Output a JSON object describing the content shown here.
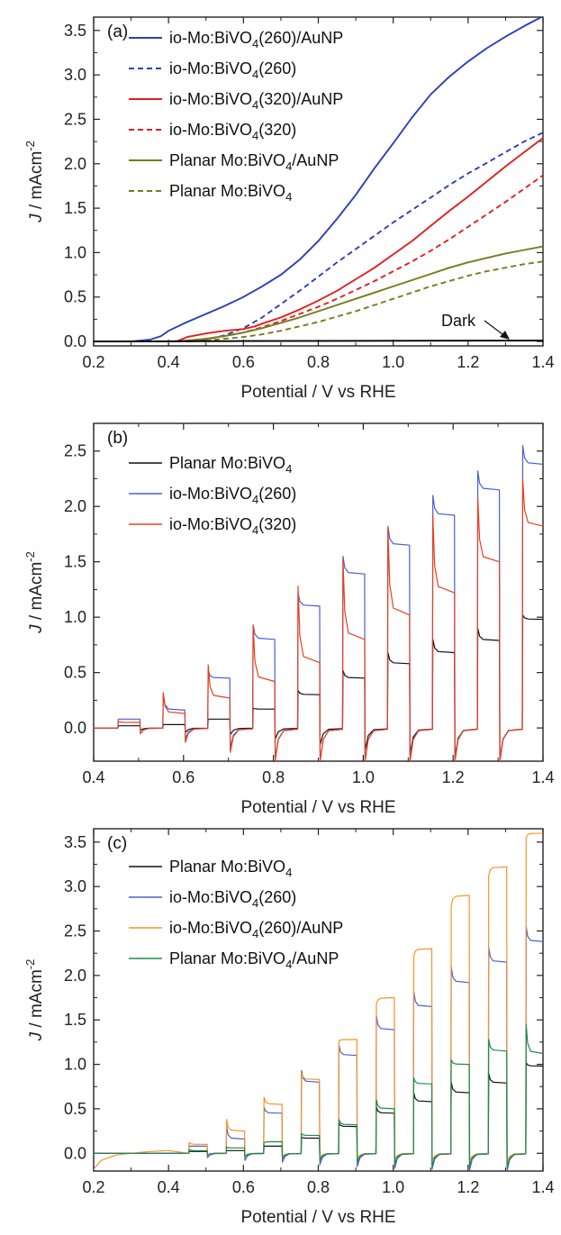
{
  "chart_data": [
    {
      "type": "line",
      "panel_label": "(a)",
      "xlabel": "Potential / V vs RHE",
      "ylabel_main": "J",
      "ylabel_units": " / mAcm",
      "ylabel_sup": "-2",
      "xlim": [
        0.2,
        1.4
      ],
      "ylim": [
        -0.05,
        3.65
      ],
      "xticks": [
        "0.2",
        "0.4",
        "0.6",
        "0.8",
        "1.0",
        "1.2",
        "1.4"
      ],
      "yticks": [
        "0.0",
        "0.5",
        "1.0",
        "1.5",
        "2.0",
        "2.5",
        "3.0",
        "3.5"
      ],
      "legend_position": "top-left",
      "annotation": "Dark",
      "series": [
        {
          "name": "io-Mo:BiVO4(260)/AuNP",
          "legend_base": "io-Mo:BiVO",
          "legend_sub": "4",
          "legend_rest": "(260)/AuNP",
          "color": "#2b3fb8",
          "dash": "solid",
          "x": [
            0.2,
            0.3,
            0.35,
            0.38,
            0.4,
            0.45,
            0.5,
            0.55,
            0.6,
            0.65,
            0.7,
            0.75,
            0.8,
            0.85,
            0.9,
            0.95,
            1.0,
            1.05,
            1.1,
            1.15,
            1.2,
            1.25,
            1.3,
            1.35,
            1.4
          ],
          "y": [
            0.0,
            0.0,
            0.02,
            0.06,
            0.12,
            0.22,
            0.31,
            0.4,
            0.5,
            0.62,
            0.75,
            0.92,
            1.13,
            1.38,
            1.65,
            1.95,
            2.23,
            2.52,
            2.78,
            2.98,
            3.15,
            3.3,
            3.43,
            3.55,
            3.66
          ]
        },
        {
          "name": "io-Mo:BiVO4(260)",
          "legend_base": "io-Mo:BiVO",
          "legend_sub": "4",
          "legend_rest": "(260)",
          "color": "#2b3fb8",
          "dash": "dashed",
          "x": [
            0.2,
            0.35,
            0.42,
            0.5,
            0.55,
            0.6,
            0.65,
            0.7,
            0.75,
            0.8,
            0.85,
            0.9,
            0.95,
            1.0,
            1.05,
            1.1,
            1.15,
            1.2,
            1.25,
            1.3,
            1.35,
            1.4
          ],
          "y": [
            0.0,
            0.0,
            0.0,
            0.02,
            0.07,
            0.15,
            0.27,
            0.42,
            0.57,
            0.73,
            0.89,
            1.04,
            1.19,
            1.34,
            1.48,
            1.62,
            1.76,
            1.89,
            2.01,
            2.13,
            2.25,
            2.35
          ]
        },
        {
          "name": "io-Mo:BiVO4(320)/AuNP",
          "legend_base": "io-Mo:BiVO",
          "legend_sub": "4",
          "legend_rest": "(320)/AuNP",
          "color": "#e02020",
          "dash": "solid",
          "x": [
            0.42,
            0.45,
            0.5,
            0.55,
            0.6,
            0.63,
            0.65,
            0.7,
            0.75,
            0.8,
            0.85,
            0.9,
            0.95,
            1.0,
            1.05,
            1.1,
            1.15,
            1.2,
            1.25,
            1.3,
            1.35,
            1.4
          ],
          "y": [
            0.0,
            0.05,
            0.09,
            0.12,
            0.14,
            0.17,
            0.2,
            0.27,
            0.36,
            0.46,
            0.57,
            0.7,
            0.83,
            0.98,
            1.13,
            1.3,
            1.47,
            1.63,
            1.8,
            1.97,
            2.13,
            2.29
          ]
        },
        {
          "name": "io-Mo:BiVO4(320)",
          "legend_base": "io-Mo:BiVO",
          "legend_sub": "4",
          "legend_rest": "(320)",
          "color": "#e02020",
          "dash": "dashed",
          "x": [
            0.42,
            0.5,
            0.55,
            0.6,
            0.65,
            0.7,
            0.75,
            0.8,
            0.85,
            0.9,
            0.95,
            1.0,
            1.05,
            1.1,
            1.15,
            1.2,
            1.25,
            1.3,
            1.35,
            1.4
          ],
          "y": [
            0.0,
            0.03,
            0.06,
            0.1,
            0.16,
            0.23,
            0.31,
            0.39,
            0.48,
            0.58,
            0.68,
            0.79,
            0.9,
            1.02,
            1.15,
            1.29,
            1.43,
            1.57,
            1.72,
            1.87
          ]
        },
        {
          "name": "Planar Mo:BiVO4/AuNP",
          "legend_base": "Planar Mo:BiVO",
          "legend_sub": "4",
          "legend_rest": "/AuNP",
          "color": "#7a7a1e",
          "dash": "solid",
          "x": [
            0.4,
            0.45,
            0.5,
            0.55,
            0.6,
            0.65,
            0.7,
            0.75,
            0.8,
            0.85,
            0.9,
            0.95,
            1.0,
            1.05,
            1.1,
            1.15,
            1.2,
            1.25,
            1.3,
            1.35,
            1.4
          ],
          "y": [
            0.0,
            0.01,
            0.03,
            0.06,
            0.1,
            0.15,
            0.21,
            0.27,
            0.34,
            0.41,
            0.48,
            0.55,
            0.62,
            0.69,
            0.76,
            0.83,
            0.89,
            0.94,
            0.99,
            1.03,
            1.07
          ]
        },
        {
          "name": "Planar Mo:BiVO4",
          "legend_base": "Planar Mo:BiVO",
          "legend_sub": "4",
          "legend_rest": "",
          "color": "#7a7a1e",
          "dash": "dashed",
          "x": [
            0.45,
            0.5,
            0.55,
            0.6,
            0.65,
            0.7,
            0.75,
            0.8,
            0.85,
            0.9,
            0.95,
            1.0,
            1.05,
            1.1,
            1.15,
            1.2,
            1.25,
            1.3,
            1.35,
            1.4
          ],
          "y": [
            0.0,
            0.01,
            0.03,
            0.05,
            0.08,
            0.12,
            0.17,
            0.22,
            0.28,
            0.34,
            0.41,
            0.48,
            0.55,
            0.62,
            0.68,
            0.74,
            0.79,
            0.83,
            0.87,
            0.9
          ]
        },
        {
          "name": "Dark",
          "color": "#000000",
          "dash": "solid",
          "x": [
            0.2,
            0.6,
            1.0,
            1.4
          ],
          "y": [
            0.0,
            0.005,
            0.008,
            0.01
          ]
        }
      ]
    },
    {
      "type": "line",
      "panel_label": "(b)",
      "xlabel": "Potential / V vs RHE",
      "ylabel_main": "J",
      "ylabel_units": " / mAcm",
      "ylabel_sup": "-2",
      "xlim": [
        0.4,
        1.4
      ],
      "ylim": [
        -0.3,
        2.75
      ],
      "xticks": [
        "0.4",
        "0.6",
        "0.8",
        "1.0",
        "1.2",
        "1.4"
      ],
      "yticks": [
        "0.0",
        "0.5",
        "1.0",
        "1.5",
        "2.0",
        "2.5"
      ],
      "legend_position": "top-left",
      "chopping": {
        "first_on": 0.455,
        "period": 0.1,
        "on_duration": 0.048,
        "cycles": 10
      },
      "series": [
        {
          "name": "Planar Mo:BiVO4",
          "legend_base": "Planar Mo:BiVO",
          "legend_sub": "4",
          "legend_rest": "",
          "color": "#111111",
          "on_spike": [
            0.02,
            0.03,
            0.08,
            0.18,
            0.34,
            0.52,
            0.68,
            0.8,
            0.9,
            1.02
          ],
          "on_steady": [
            0.02,
            0.03,
            0.08,
            0.17,
            0.3,
            0.45,
            0.58,
            0.68,
            0.79,
            0.98
          ],
          "off_dip": [
            -0.02,
            -0.04,
            -0.06,
            -0.1,
            -0.15,
            -0.2,
            -0.24,
            -0.27,
            -0.29,
            -0.3
          ]
        },
        {
          "name": "io-Mo:BiVO4(260)",
          "legend_base": "io-Mo:BiVO",
          "legend_sub": "4",
          "legend_rest": "(260)",
          "color": "#4a5fd6",
          "on_spike": [
            0.08,
            0.3,
            0.52,
            0.93,
            1.22,
            1.55,
            1.82,
            2.1,
            2.32,
            2.55
          ],
          "on_steady": [
            0.08,
            0.16,
            0.45,
            0.8,
            1.1,
            1.39,
            1.65,
            1.92,
            2.15,
            2.38
          ],
          "off_dip": [
            -0.05,
            -0.1,
            -0.18,
            -0.28,
            -0.3,
            -0.3,
            -0.3,
            -0.3,
            -0.3,
            -0.3
          ]
        },
        {
          "name": "io-Mo:BiVO4(320)",
          "legend_base": "io-Mo:BiVO",
          "legend_sub": "4",
          "legend_rest": "(320)",
          "color": "#e8401f",
          "on_spike": [
            0.06,
            0.32,
            0.57,
            0.93,
            1.28,
            1.52,
            1.8,
            1.92,
            2.08,
            2.25
          ],
          "on_steady": [
            0.05,
            0.13,
            0.27,
            0.42,
            0.59,
            0.8,
            1.02,
            1.22,
            1.5,
            1.82
          ],
          "off_dip": [
            -0.05,
            -0.13,
            -0.22,
            -0.3,
            -0.3,
            -0.3,
            -0.3,
            -0.3,
            -0.3,
            -0.3
          ]
        }
      ]
    },
    {
      "type": "line",
      "panel_label": "(c)",
      "xlabel": "Potential / V vs RHE",
      "ylabel_main": "J",
      "ylabel_units": " / mAcm",
      "ylabel_sup": "-2",
      "xlim": [
        0.2,
        1.4
      ],
      "ylim": [
        -0.2,
        3.65
      ],
      "xticks": [
        "0.2",
        "0.4",
        "0.6",
        "0.8",
        "1.0",
        "1.2",
        "1.4"
      ],
      "yticks": [
        "0.0",
        "0.5",
        "1.0",
        "1.5",
        "2.0",
        "2.5",
        "3.0",
        "3.5"
      ],
      "legend_position": "top-left",
      "chopping": {
        "first_on": 0.455,
        "period": 0.1,
        "on_duration": 0.048,
        "cycles": 10
      },
      "series": [
        {
          "name": "Planar Mo:BiVO4",
          "legend_base": "Planar Mo:BiVO",
          "legend_sub": "4",
          "legend_rest": "",
          "color": "#111111",
          "on_spike": [
            0.02,
            0.03,
            0.08,
            0.18,
            0.34,
            0.52,
            0.68,
            0.8,
            0.9,
            1.02
          ],
          "on_steady": [
            0.02,
            0.03,
            0.08,
            0.17,
            0.3,
            0.45,
            0.58,
            0.68,
            0.79,
            0.98
          ],
          "off_dip": [
            -0.02,
            -0.04,
            -0.06,
            -0.08,
            -0.1,
            -0.12,
            -0.14,
            -0.15,
            -0.16,
            -0.17
          ]
        },
        {
          "name": "io-Mo:BiVO4(260)",
          "legend_base": "io-Mo:BiVO",
          "legend_sub": "4",
          "legend_rest": "(260)",
          "color": "#4a5fd6",
          "on_spike": [
            0.08,
            0.3,
            0.52,
            0.93,
            1.22,
            1.55,
            1.82,
            2.1,
            2.32,
            2.55
          ],
          "on_steady": [
            0.08,
            0.16,
            0.45,
            0.8,
            1.1,
            1.39,
            1.65,
            1.92,
            2.15,
            2.38
          ],
          "off_dip": [
            -0.05,
            -0.08,
            -0.1,
            -0.13,
            -0.15,
            -0.17,
            -0.18,
            -0.19,
            -0.2,
            -0.2
          ]
        },
        {
          "name": "io-Mo:BiVO4(260)/AuNP",
          "legend_base": "io-Mo:BiVO",
          "legend_sub": "4",
          "legend_rest": "(260)/AuNP",
          "color": "#f5932a",
          "pre": {
            "x": [
              0.2,
              0.22,
              0.26,
              0.3,
              0.35,
              0.4
            ],
            "y": [
              -0.18,
              -0.08,
              -0.02,
              0.0,
              0.02,
              0.03
            ]
          },
          "on_spike": [
            0.12,
            0.38,
            0.63,
            0.9,
            1.26,
            1.68,
            2.22,
            2.78,
            3.12,
            3.55
          ],
          "on_steady": [
            0.1,
            0.25,
            0.55,
            0.83,
            1.28,
            1.75,
            2.3,
            2.9,
            3.22,
            3.6
          ],
          "off_dip": [
            -0.02,
            -0.03,
            -0.04,
            -0.05,
            -0.06,
            -0.07,
            -0.08,
            -0.09,
            -0.1,
            -0.1
          ]
        },
        {
          "name": "Planar Mo:BiVO4/AuNP",
          "legend_base": "Planar Mo:BiVO",
          "legend_sub": "4",
          "legend_rest": "/AuNP",
          "color": "#1f8a4c",
          "on_spike": [
            0.04,
            0.07,
            0.12,
            0.22,
            0.38,
            0.6,
            0.85,
            1.05,
            1.28,
            1.45
          ],
          "on_steady": [
            0.03,
            0.06,
            0.13,
            0.2,
            0.32,
            0.5,
            0.78,
            1.0,
            1.15,
            1.12
          ],
          "off_dip": [
            -0.02,
            -0.04,
            -0.06,
            -0.08,
            -0.1,
            -0.12,
            -0.14,
            -0.15,
            -0.16,
            -0.17
          ]
        }
      ]
    }
  ]
}
